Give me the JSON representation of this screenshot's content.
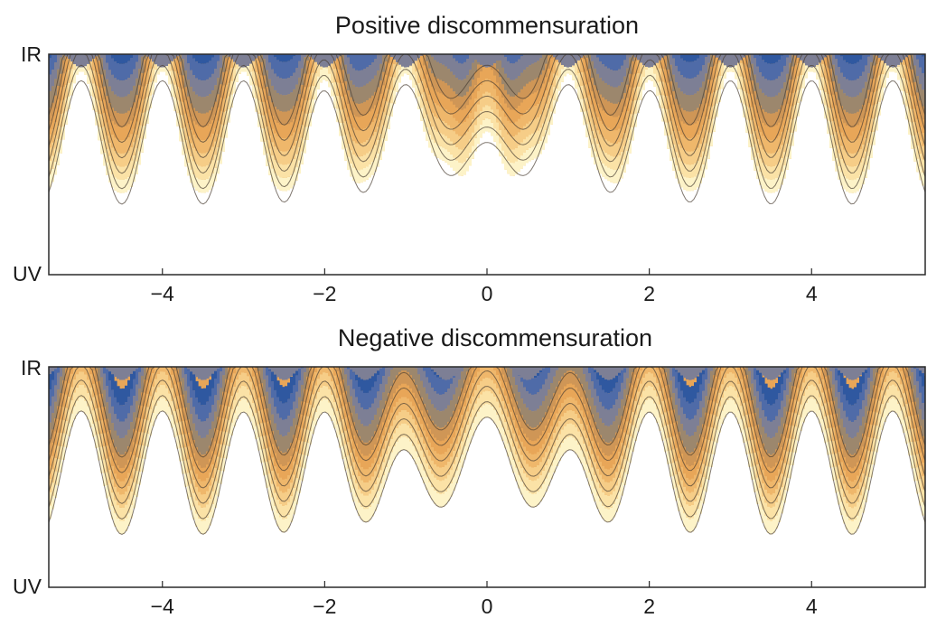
{
  "chart_data": [
    {
      "type": "contour",
      "title": "Positive discommensuration",
      "xlim": [
        -5.4,
        5.4
      ],
      "x_ticks": [
        -4,
        -2,
        0,
        2,
        4
      ],
      "x_tick_labels": [
        "−4",
        "−2",
        "0",
        "2",
        "4"
      ],
      "y_tick_labels": [
        "UV",
        "IR"
      ],
      "grid": false,
      "legend": "none",
      "defect_sign": 1
    },
    {
      "type": "contour",
      "title": "Negative discommensuration",
      "xlim": [
        -5.4,
        5.4
      ],
      "x_ticks": [
        -4,
        -2,
        0,
        2,
        4
      ],
      "x_tick_labels": [
        "−4",
        "−2",
        "0",
        "2",
        "4"
      ],
      "y_tick_labels": [
        "UV",
        "IR"
      ],
      "grid": false,
      "legend": "none",
      "defect_sign": -1
    }
  ],
  "colors": {
    "palette": [
      "#ffffff",
      "#fdf3c8",
      "#fbe2a6",
      "#f6cd87",
      "#efb76b",
      "#e8a658",
      "#cf9656",
      "#9c876d",
      "#7d7f95",
      "#4f6ba8",
      "#2f58a0"
    ],
    "contour_line": "#4a3f33"
  }
}
